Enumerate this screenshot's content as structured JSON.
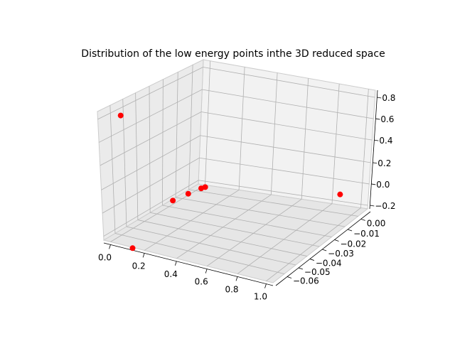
{
  "chart_data": {
    "type": "scatter",
    "title": "Distribution of the low energy points inthe 3D reduced space",
    "xlabel": "",
    "ylabel": "",
    "zlabel": "",
    "grid": true,
    "x_ticks": [
      "0.0",
      "0.2",
      "0.4",
      "0.6",
      "0.8",
      "1.0"
    ],
    "y_ticks": [
      "0.00",
      "−0.01",
      "−0.02",
      "−0.03",
      "−0.04",
      "−0.05",
      "−0.06"
    ],
    "z_ticks": [
      "−0.2",
      "0.0",
      "0.2",
      "0.4",
      "0.6",
      "0.8"
    ],
    "points": [
      {
        "x": 0.0,
        "y": -0.065,
        "z": 0.85
      },
      {
        "x": 0.11,
        "y": -0.065,
        "z": -0.3
      },
      {
        "x": 0.24,
        "y": -0.05,
        "z": 0.05
      },
      {
        "x": 0.26,
        "y": -0.04,
        "z": 0.05
      },
      {
        "x": 0.28,
        "y": -0.032,
        "z": 0.05
      },
      {
        "x": 0.29,
        "y": -0.03,
        "z": 0.05
      },
      {
        "x": 1.0,
        "y": -0.01,
        "z": 0.0
      }
    ],
    "marker_color": "#ff0000"
  }
}
